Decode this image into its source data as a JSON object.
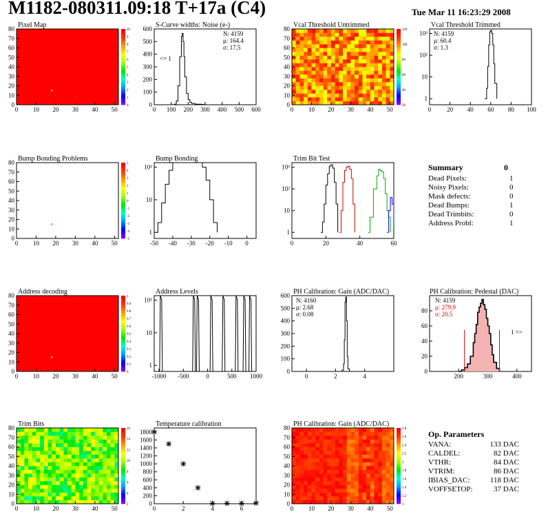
{
  "page": {
    "title": "M1182-080311.09:18 T+17a (C4)",
    "date": "Tue Mar 11 16:23:29 2008"
  },
  "colors": {
    "red": "#ff0000",
    "series_black": "#000000",
    "series_red": "#cc0000",
    "series_green": "#00aa00",
    "series_blue": "#0000ff"
  },
  "chart_data": [
    {
      "id": "pixel_map",
      "type": "heatmap",
      "title": "Pixel Map",
      "xlim": [
        0,
        52
      ],
      "ylim": [
        0,
        80
      ],
      "xticks": [
        0,
        10,
        20,
        30,
        40,
        50
      ],
      "yticks": [
        0,
        10,
        20,
        30,
        40,
        50,
        60,
        70,
        80
      ],
      "zticks": [
        "10",
        "9",
        "8",
        "7",
        "6",
        "5",
        "4",
        "3",
        "2",
        "1",
        "0"
      ],
      "fill": "uniform-red",
      "marker": [
        18,
        15
      ]
    },
    {
      "id": "scurve",
      "type": "line",
      "title": "S-Curve widths: Noise (e-)",
      "xlim": [
        0,
        600
      ],
      "ylim": [
        0,
        600
      ],
      "xticks": [
        0,
        100,
        200,
        300,
        400,
        500,
        600
      ],
      "yticks": [
        0,
        100,
        200,
        300,
        400,
        500,
        600
      ],
      "stats": [
        "N: 4159",
        "μ: 164.4",
        "σ: 17.5"
      ],
      "annotation": "<= 1",
      "series": [
        {
          "x": [
            100,
            120,
            130,
            140,
            150,
            160,
            165,
            170,
            175,
            180,
            190,
            200,
            210,
            220,
            240,
            260,
            280,
            300
          ],
          "y": [
            0,
            5,
            30,
            150,
            380,
            540,
            565,
            500,
            380,
            220,
            90,
            40,
            20,
            10,
            5,
            4,
            2,
            0
          ]
        }
      ]
    },
    {
      "id": "vcal_untrimmed",
      "type": "heatmap",
      "title": "Vcal Threshold Untrimmed",
      "xlim": [
        0,
        52
      ],
      "ylim": [
        0,
        80
      ],
      "xticks": [
        0,
        10,
        20,
        30,
        40,
        50
      ],
      "yticks": [
        0,
        10,
        20,
        30,
        40,
        50,
        60,
        70,
        80
      ],
      "zticks": [
        "120",
        "100",
        "80",
        "60",
        "40",
        "20"
      ],
      "fill": "noisy-yellow-orange"
    },
    {
      "id": "vcal_trimmed",
      "type": "line",
      "title": "Vcal Threshold Trimmed",
      "log_y": true,
      "xlim": [
        0,
        100
      ],
      "xticks": [
        0,
        20,
        40,
        60,
        80,
        100
      ],
      "yticks": [
        "1",
        "10",
        "10²",
        "10³"
      ],
      "stats": [
        "N: 4159",
        "μ: 60.4",
        "σ:  1.3"
      ],
      "series": [
        {
          "x": [
            54,
            56,
            57,
            58,
            59,
            60,
            61,
            62,
            63,
            64,
            66
          ],
          "y": [
            1,
            3,
            30,
            300,
            1200,
            1400,
            1000,
            300,
            40,
            5,
            1
          ]
        }
      ]
    },
    {
      "id": "bump_problems",
      "type": "heatmap",
      "title": "Bump Bonding Problems",
      "xlim": [
        0,
        52
      ],
      "ylim": [
        0,
        80
      ],
      "xticks": [
        0,
        10,
        20,
        30,
        40,
        50
      ],
      "yticks": [
        0,
        10,
        20,
        30,
        40,
        50,
        60,
        70,
        80
      ],
      "zticks": [
        "5",
        "4",
        "3",
        "2",
        "1",
        "0",
        "-1",
        "-2",
        "-3",
        "-4",
        "-5"
      ],
      "fill": "empty",
      "marker": [
        18,
        15
      ]
    },
    {
      "id": "bump_bonding",
      "type": "line",
      "title": "Bump Bonding",
      "log_y": true,
      "xlim": [
        -50,
        5
      ],
      "xticks": [
        -50,
        -40,
        -30,
        -20,
        -10,
        0
      ],
      "yticks": [
        "1",
        "10",
        "10²"
      ],
      "series": [
        {
          "x": [
            -49,
            -48,
            -46,
            -44,
            -42,
            -40,
            -38,
            -36,
            -34,
            -32,
            -30,
            -28,
            -26,
            -24,
            -22,
            -20,
            -18,
            -16
          ],
          "y": [
            1,
            2,
            8,
            30,
            80,
            150,
            250,
            300,
            350,
            280,
            300,
            250,
            180,
            100,
            40,
            10,
            2,
            1
          ]
        }
      ]
    },
    {
      "id": "trim_bit_test",
      "type": "line",
      "title": "Trim Bit Test",
      "log_y": true,
      "xlim": [
        0,
        60
      ],
      "xticks": [
        0,
        20,
        40,
        60
      ],
      "yticks": [
        "1",
        "10",
        "10²",
        "10³"
      ],
      "series": [
        {
          "color": "#000000",
          "x": [
            17,
            18,
            19,
            20,
            21,
            22,
            23,
            24,
            25,
            26,
            27
          ],
          "y": [
            1,
            3,
            20,
            150,
            500,
            1100,
            1300,
            900,
            200,
            20,
            1
          ]
        },
        {
          "color": "#cc0000",
          "x": [
            28,
            29,
            30,
            31,
            32,
            33,
            34,
            35,
            36,
            37
          ],
          "y": [
            1,
            10,
            200,
            700,
            1000,
            1100,
            800,
            300,
            20,
            1
          ]
        },
        {
          "color": "#00aa00",
          "x": [
            45,
            46,
            48,
            50,
            51,
            52,
            53,
            54,
            55,
            56,
            57,
            58
          ],
          "y": [
            1,
            5,
            100,
            400,
            800,
            700,
            600,
            300,
            60,
            10,
            5,
            1
          ]
        },
        {
          "color": "#0000ff",
          "x": [
            56,
            57,
            58,
            59,
            60
          ],
          "y": [
            1,
            10,
            40,
            20,
            2
          ]
        }
      ]
    },
    {
      "id": "address_decoding",
      "type": "heatmap",
      "title": "Address decoding",
      "xlim": [
        0,
        52
      ],
      "ylim": [
        0,
        80
      ],
      "xticks": [
        0,
        10,
        20,
        30,
        40,
        50
      ],
      "yticks": [
        0,
        10,
        20,
        30,
        40,
        50,
        60,
        70,
        80
      ],
      "zticks": [
        "1",
        "0.9",
        "0.8",
        "0.7",
        "0.6",
        "0.5",
        "0.4",
        "0.3",
        "0.2",
        "0.1",
        "0"
      ],
      "fill": "uniform-red",
      "marker": [
        18,
        15
      ]
    },
    {
      "id": "address_levels",
      "type": "line",
      "title": "Address Levels",
      "log_y": true,
      "xlim": [
        -1100,
        1000
      ],
      "xticks": [
        -1000,
        -500,
        0,
        500,
        1000
      ],
      "yticks": [
        "1",
        "10",
        "10²"
      ],
      "peaks": [
        -960,
        -280,
        -200,
        80,
        330,
        600,
        760,
        880
      ]
    },
    {
      "id": "ph_gain",
      "type": "line",
      "title": "PH Calibration: Gain (ADC/DAC)",
      "xlim": [
        -1,
        6
      ],
      "ylim": [
        0,
        600
      ],
      "xticks": [
        0,
        2,
        4
      ],
      "yticks": [
        0,
        100,
        200,
        300,
        400,
        500,
        600
      ],
      "stats": [
        "N: 4160",
        "μ: 2.68",
        "σ: 0.08"
      ],
      "series": [
        {
          "x": [
            2.3,
            2.45,
            2.55,
            2.6,
            2.65,
            2.7,
            2.75,
            2.8,
            2.85,
            2.95
          ],
          "y": [
            0,
            10,
            60,
            250,
            550,
            590,
            400,
            120,
            20,
            0
          ]
        }
      ]
    },
    {
      "id": "ph_pedestal",
      "type": "bar",
      "title": "PH Calibration: Pedestal (DAC)",
      "xlim": [
        100,
        450
      ],
      "ylim": [
        0,
        100
      ],
      "xticks": [
        200,
        300,
        400
      ],
      "yticks": [
        0,
        20,
        40,
        60,
        80
      ],
      "stats": [
        "N: 4159",
        "μ: 279.9",
        "σ: 20.5"
      ],
      "annotation": "1 =>",
      "series": [
        {
          "x": [
            200,
            210,
            220,
            230,
            240,
            250,
            255,
            260,
            265,
            270,
            275,
            280,
            285,
            290,
            295,
            300,
            305,
            310,
            315,
            320,
            330,
            340
          ],
          "y": [
            0,
            2,
            5,
            10,
            20,
            38,
            50,
            62,
            78,
            85,
            90,
            95,
            88,
            82,
            70,
            60,
            50,
            35,
            22,
            12,
            4,
            0
          ]
        }
      ]
    },
    {
      "id": "trim_bits",
      "type": "heatmap",
      "title": "Trim Bits",
      "xlim": [
        0,
        52
      ],
      "ylim": [
        0,
        80
      ],
      "xticks": [
        0,
        10,
        20,
        30,
        40,
        50
      ],
      "yticks": [
        0,
        10,
        20,
        30,
        40,
        50,
        60,
        70,
        80
      ],
      "zticks": [
        "16",
        "14",
        "12",
        "10",
        "8",
        "6",
        "4",
        "2"
      ],
      "fill": "noisy-green"
    },
    {
      "id": "temperature",
      "type": "scatter",
      "title": "Temperature calibration",
      "xlim": [
        0,
        7
      ],
      "ylim": [
        0,
        1900
      ],
      "xticks": [
        0,
        2,
        4,
        6
      ],
      "yticks": [
        0,
        200,
        400,
        600,
        800,
        1000,
        1200,
        1400,
        1600,
        1800
      ],
      "series": [
        {
          "x": [
            0,
            1,
            2,
            3,
            4,
            5,
            6,
            7
          ],
          "y": [
            1800,
            1500,
            1000,
            400,
            10,
            10,
            10,
            20
          ]
        }
      ]
    },
    {
      "id": "ph_gain_map",
      "type": "heatmap",
      "title": "PH Calibration: Gain (ADC/DAC)",
      "xlim": [
        0,
        52
      ],
      "ylim": [
        0,
        80
      ],
      "xticks": [
        0,
        10,
        20,
        30,
        40,
        50
      ],
      "yticks": [
        0,
        10,
        20,
        30,
        40,
        50,
        60,
        70,
        80
      ],
      "zticks": [
        "2.8",
        "2.6",
        "2.4",
        "2.2",
        "2",
        "1.8",
        "1.6",
        "1.4",
        "1.2",
        "1"
      ],
      "fill": "mostly-red"
    }
  ],
  "summary": {
    "header": "Summary",
    "header_value": "0",
    "rows": [
      {
        "label": "Dead Pixels:",
        "value": "1"
      },
      {
        "label": "Noisy Pixels:",
        "value": "0"
      },
      {
        "label": "Mask defects:",
        "value": "0"
      },
      {
        "label": "Dead Bumps:",
        "value": "1"
      },
      {
        "label": "Dead Trimbits:",
        "value": "0"
      },
      {
        "label": "Address Probl:",
        "value": "1"
      }
    ]
  },
  "op_parameters": {
    "header": "Op. Parameters",
    "rows": [
      {
        "label": "VANA:",
        "value": "133 DAC"
      },
      {
        "label": "CALDEL:",
        "value": "82 DAC"
      },
      {
        "label": "VTHR:",
        "value": "84 DAC"
      },
      {
        "label": "VTRIM:",
        "value": "86 DAC"
      },
      {
        "label": "IBIAS_DAC:",
        "value": "118 DAC"
      },
      {
        "label": "VOFFSETOP:",
        "value": "37 DAC"
      }
    ]
  }
}
